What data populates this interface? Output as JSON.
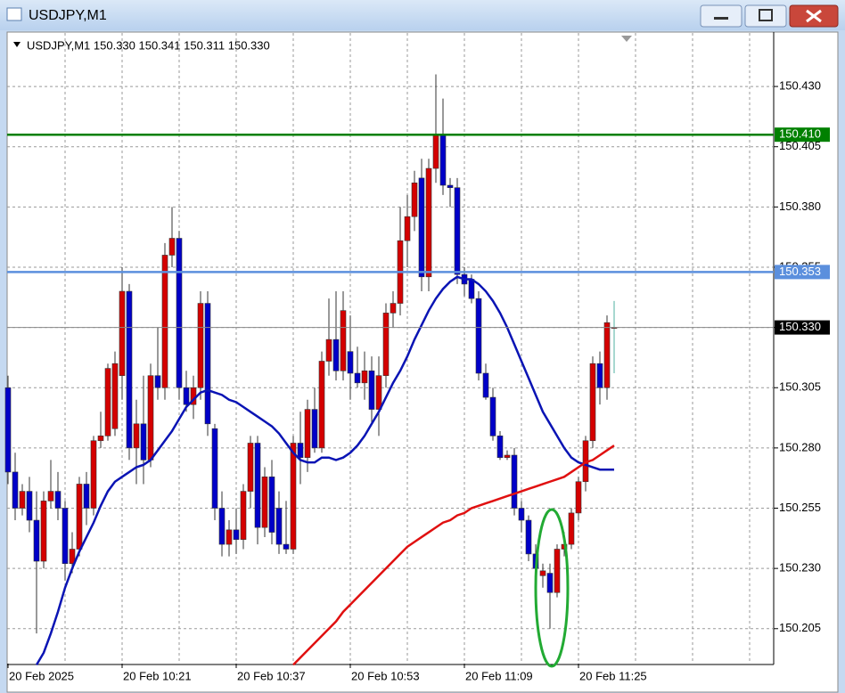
{
  "window_title": "USDJPY,M1",
  "chart_data": {
    "type": "candlestick",
    "header": "USDJPY,M1  150.330 150.341 150.311 150.330",
    "up_color": "#d40000",
    "down_color": "#0000c8",
    "x_labels": [
      "20 Feb 2025",
      "20 Feb 10:21",
      "20 Feb 10:37",
      "20 Feb 10:53",
      "20 Feb 11:09",
      "20 Feb 11:25"
    ],
    "ylim": [
      150.1905,
      150.4511
    ],
    "yticks": [
      150.205,
      {
        "value": 150.23,
        "label": "150.230"
      },
      150.255,
      {
        "value": 150.28,
        "label": "150.280"
      },
      150.305,
      {
        "value": 150.33,
        "label": "150.330"
      },
      150.355,
      {
        "value": 150.38,
        "label": "150.380"
      },
      150.405,
      {
        "value": 150.43,
        "label": "150.430"
      }
    ],
    "grid": true,
    "levels": [
      {
        "value": 150.41,
        "label": "150.410",
        "color": "#008000"
      },
      {
        "value": 150.353,
        "label": "150.353",
        "color": "#5b8fdd"
      },
      {
        "value": 150.33,
        "label": "150.330",
        "color": "#000000"
      }
    ],
    "ohlc": [
      [
        150.305,
        150.31,
        150.265,
        150.27
      ],
      [
        150.27,
        150.278,
        150.25,
        150.255
      ],
      [
        150.255,
        150.265,
        150.252,
        150.262
      ],
      [
        150.262,
        150.268,
        150.245,
        150.25
      ],
      [
        150.25,
        150.262,
        150.203,
        150.233
      ],
      [
        150.233,
        150.262,
        150.23,
        150.258
      ],
      [
        150.258,
        150.275,
        150.255,
        150.262
      ],
      [
        150.262,
        150.27,
        150.25,
        150.255
      ],
      [
        150.255,
        150.258,
        150.225,
        150.232
      ],
      [
        150.232,
        150.245,
        150.228,
        150.238
      ],
      [
        150.238,
        150.268,
        150.235,
        150.265
      ],
      [
        150.265,
        150.27,
        150.248,
        150.255
      ],
      [
        150.255,
        150.285,
        150.252,
        150.283
      ],
      [
        150.283,
        150.295,
        150.28,
        150.285
      ],
      [
        150.285,
        150.315,
        150.283,
        150.313
      ],
      [
        150.288,
        150.32,
        150.285,
        150.315
      ],
      [
        150.31,
        150.355,
        150.3,
        150.345
      ],
      [
        150.345,
        150.348,
        150.275,
        150.28
      ],
      [
        150.28,
        150.3,
        150.265,
        150.29
      ],
      [
        150.29,
        150.31,
        150.265,
        150.275
      ],
      [
        150.275,
        150.315,
        150.272,
        150.31
      ],
      [
        150.31,
        150.33,
        150.3,
        150.305
      ],
      [
        150.305,
        150.365,
        150.3,
        150.36
      ],
      [
        150.36,
        150.38,
        150.355,
        150.367
      ],
      [
        150.367,
        150.37,
        150.3,
        150.305
      ],
      [
        150.305,
        150.312,
        150.295,
        150.298
      ],
      [
        150.298,
        150.31,
        150.292,
        150.305
      ],
      [
        150.305,
        150.345,
        150.3,
        150.34
      ],
      [
        150.34,
        150.345,
        150.285,
        150.29
      ],
      [
        150.288,
        150.29,
        150.25,
        150.255
      ],
      [
        150.255,
        150.262,
        150.235,
        150.24
      ],
      [
        150.24,
        150.25,
        150.235,
        150.246
      ],
      [
        150.246,
        150.255,
        150.236,
        150.242
      ],
      [
        150.242,
        150.265,
        150.238,
        150.262
      ],
      [
        150.262,
        150.285,
        150.255,
        150.282
      ],
      [
        150.282,
        150.285,
        150.24,
        150.247
      ],
      [
        150.247,
        150.272,
        150.243,
        150.268
      ],
      [
        150.268,
        150.275,
        150.24,
        150.245
      ],
      [
        150.255,
        150.262,
        150.236,
        150.24
      ],
      [
        150.24,
        150.258,
        150.236,
        150.238
      ],
      [
        150.238,
        150.285,
        150.236,
        150.282
      ],
      [
        150.282,
        150.295,
        150.265,
        150.276
      ],
      [
        150.276,
        150.3,
        150.27,
        150.296
      ],
      [
        150.296,
        150.305,
        150.278,
        150.28
      ],
      [
        150.28,
        150.32,
        150.278,
        150.316
      ],
      [
        150.316,
        150.342,
        150.31,
        150.325
      ],
      [
        150.325,
        150.345,
        150.308,
        150.312
      ],
      [
        150.312,
        150.345,
        150.308,
        150.337
      ],
      [
        150.32,
        150.335,
        150.3,
        150.311
      ],
      [
        150.311,
        150.322,
        150.305,
        150.307
      ],
      [
        150.307,
        150.32,
        150.3,
        150.312
      ],
      [
        150.312,
        150.318,
        150.29,
        150.296
      ],
      [
        150.296,
        150.318,
        150.285,
        150.31
      ],
      [
        150.31,
        150.34,
        150.305,
        150.336
      ],
      [
        150.336,
        150.345,
        150.33,
        150.34
      ],
      [
        150.34,
        150.38,
        150.335,
        150.366
      ],
      [
        150.366,
        150.385,
        150.355,
        150.376
      ],
      [
        150.376,
        150.395,
        150.37,
        150.39
      ],
      [
        150.392,
        150.4,
        150.345,
        150.351
      ],
      [
        150.351,
        150.4,
        150.345,
        150.396
      ],
      [
        150.396,
        150.435,
        150.39,
        150.41
      ],
      [
        150.41,
        150.425,
        150.385,
        150.389
      ],
      [
        150.389,
        150.392,
        150.38,
        150.388
      ],
      [
        150.388,
        150.392,
        150.348,
        150.352
      ],
      [
        150.352,
        150.355,
        150.343,
        150.348
      ],
      [
        150.35,
        150.352,
        150.34,
        150.342
      ],
      [
        150.342,
        150.345,
        150.308,
        150.311
      ],
      [
        150.311,
        150.315,
        150.3,
        150.301
      ],
      [
        150.301,
        150.305,
        150.283,
        150.285
      ],
      [
        150.285,
        150.287,
        150.275,
        150.276
      ],
      [
        150.276,
        150.279,
        150.275,
        150.277
      ],
      [
        150.277,
        150.28,
        150.252,
        150.255
      ],
      [
        150.255,
        150.258,
        150.245,
        150.25
      ],
      [
        150.25,
        150.252,
        150.233,
        150.236
      ],
      [
        150.236,
        150.24,
        150.22,
        150.23
      ],
      [
        150.227,
        150.232,
        150.222,
        150.229
      ],
      [
        150.228,
        150.232,
        150.205,
        150.22
      ],
      [
        150.22,
        150.24,
        150.218,
        150.238
      ],
      [
        150.238,
        150.245,
        150.235,
        150.24
      ],
      [
        150.24,
        150.255,
        150.238,
        150.253
      ],
      [
        150.253,
        150.268,
        150.25,
        150.266
      ],
      [
        150.266,
        150.285,
        150.262,
        150.283
      ],
      [
        150.283,
        150.318,
        150.28,
        150.315
      ],
      [
        150.315,
        150.32,
        150.298,
        150.305
      ],
      [
        150.305,
        150.335,
        150.3,
        150.332
      ],
      [
        150.33,
        150.341,
        150.311,
        150.33
      ]
    ],
    "series": [
      {
        "color": "#0a14b4",
        "values": [
          null,
          null,
          null,
          null,
          150.19,
          150.195,
          150.203,
          150.212,
          150.222,
          150.23,
          150.237,
          150.243,
          150.249,
          150.256,
          150.262,
          150.266,
          150.268,
          150.27,
          150.272,
          150.273,
          150.275,
          150.279,
          150.283,
          150.287,
          150.292,
          150.297,
          150.3,
          150.303,
          150.304,
          150.303,
          150.302,
          150.3,
          150.299,
          150.297,
          150.295,
          150.293,
          150.291,
          150.289,
          150.286,
          150.282,
          150.278,
          150.275,
          150.274,
          150.274,
          150.276,
          150.276,
          150.275,
          150.276,
          150.278,
          150.281,
          150.285,
          150.29,
          150.295,
          150.301,
          150.307,
          150.312,
          150.318,
          150.325,
          150.331,
          150.337,
          150.342,
          150.346,
          150.349,
          150.351,
          150.35,
          150.35,
          150.348,
          150.345,
          150.341,
          150.336,
          150.33,
          150.323,
          150.316,
          150.309,
          150.302,
          150.295,
          150.29,
          150.285,
          150.28,
          150.276,
          150.274,
          150.273,
          150.272,
          150.271,
          150.271,
          150.271
        ]
      },
      {
        "color": "#e01010",
        "values": [
          null,
          null,
          null,
          null,
          null,
          null,
          null,
          null,
          null,
          null,
          null,
          null,
          null,
          null,
          null,
          null,
          null,
          null,
          null,
          null,
          null,
          null,
          null,
          null,
          null,
          null,
          null,
          null,
          null,
          null,
          null,
          null,
          null,
          null,
          null,
          null,
          null,
          null,
          null,
          null,
          150.19,
          150.193,
          150.196,
          150.199,
          150.202,
          150.205,
          150.208,
          150.212,
          150.215,
          150.218,
          150.221,
          150.224,
          150.227,
          150.23,
          150.233,
          150.236,
          150.239,
          150.241,
          150.243,
          150.245,
          150.247,
          150.249,
          150.25,
          150.252,
          150.253,
          150.255,
          150.256,
          150.257,
          150.258,
          150.259,
          150.26,
          150.261,
          150.262,
          150.263,
          150.264,
          150.265,
          150.266,
          150.267,
          150.268,
          150.27,
          150.272,
          150.274,
          150.275,
          150.277,
          150.279,
          150.281
        ]
      }
    ]
  }
}
